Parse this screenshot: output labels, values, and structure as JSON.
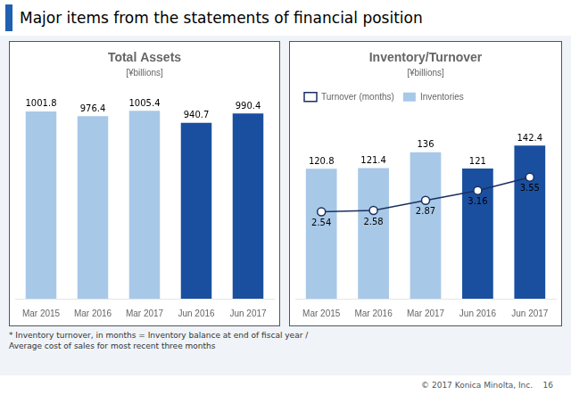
{
  "title": "Major items from the statements of financial position",
  "annotations": [
    "© 2017 Konica Minolta, Inc.    16"
  ],
  "chart_data": [
    {
      "type": "bar",
      "title": "Total Assets",
      "subtitle": "[¥billions]",
      "categories": [
        "Mar 2015",
        "Mar 2016",
        "Mar 2017",
        "Jun 2016",
        "Jun 2017"
      ],
      "values": [
        1001.8,
        976.4,
        1005.4,
        940.7,
        990.4
      ],
      "colors": [
        "#a8c8e8",
        "#a8c8e8",
        "#a8c8e8",
        "#1a4fa0",
        "#1a4fa0"
      ],
      "ylim": [
        0,
        1150
      ],
      "grid": false,
      "data_labels": true,
      "tick_labels": "x"
    },
    {
      "type": "bar",
      "title": "Inventory/Turnover",
      "subtitle": "[¥billions]",
      "categories": [
        "Mar 2015",
        "Mar 2016",
        "Mar 2017",
        "Jun 2016",
        "Jun 2017"
      ],
      "series": [
        {
          "name": "Inventories",
          "type": "bar",
          "colors": [
            "#a8c8e8",
            "#a8c8e8",
            "#a8c8e8",
            "#1a4fa0",
            "#1a4fa0"
          ],
          "values": [
            120.8,
            121.4,
            136.0,
            121.0,
            142.4
          ]
        },
        {
          "name": "Turnover (months)",
          "type": "line",
          "color": "#1a3060",
          "marker": "circle",
          "line_style": "solid",
          "axis": "y2",
          "values": [
            2.54,
            2.58,
            2.87,
            3.16,
            3.55
          ]
        }
      ],
      "ylim": [
        0,
        175
      ],
      "y2lim": [
        0,
        5.5
      ],
      "grid": false,
      "legend": "upper left",
      "data_labels": true,
      "tick_labels": "x",
      "annotations": [
        "* Inventory turnover, in months = Inventory balance at end of fiscal year /\nAverage cost of sales for most recent three months"
      ]
    }
  ]
}
